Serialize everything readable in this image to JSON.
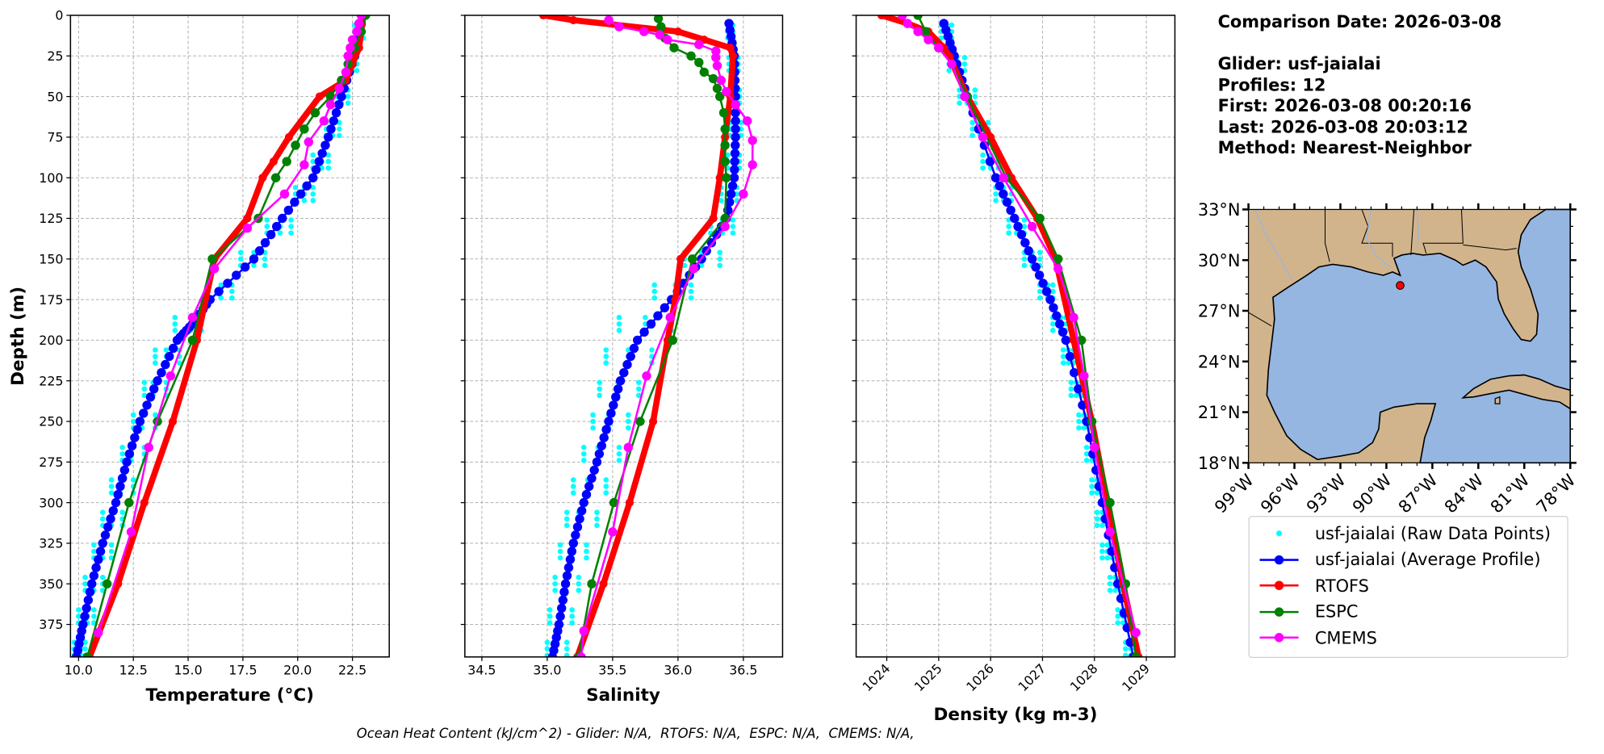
{
  "info": {
    "comparison_date": "Comparison Date: 2026-03-08",
    "glider": "Glider: usf-jaialai",
    "profiles": "Profiles: 12",
    "first": "First: 2026-03-08 00:20:16",
    "last": "Last: 2026-03-08 20:03:12",
    "method": "Method: Nearest-Neighbor"
  },
  "caption": "Ocean Heat Content (kJ/cm^2) - Glider: N/A,  RTOFS: N/A,  ESPC: N/A,  CMEMS: N/A,",
  "ylabel": "Depth (m)",
  "legend": [
    {
      "label": "usf-jaialai (Raw Data Points)",
      "color": "#00ffff",
      "style": "dot"
    },
    {
      "label": "usf-jaialai (Average Profile)",
      "color": "#0000ff",
      "style": "line-marker"
    },
    {
      "label": "RTOFS",
      "color": "#ff0000",
      "style": "line-marker"
    },
    {
      "label": "ESPC",
      "color": "#008000",
      "style": "line-marker"
    },
    {
      "label": "CMEMS",
      "color": "#ff00ff",
      "style": "line-marker"
    }
  ],
  "chart_data": [
    {
      "type": "line",
      "xlabel": "Temperature (°C)",
      "ylabel": "Depth (m)",
      "xlim": [
        9.63,
        24.18
      ],
      "ylim": [
        395,
        0
      ],
      "xticks": [
        "10.0",
        "12.5",
        "15.0",
        "17.5",
        "20.0",
        "22.5"
      ],
      "yticks": [
        0,
        25,
        50,
        75,
        100,
        125,
        150,
        175,
        200,
        225,
        250,
        275,
        300,
        325,
        350,
        375
      ],
      "grid": true,
      "raw": {
        "depth": [
          10,
          30,
          50,
          70,
          90,
          110,
          130,
          150,
          170,
          190,
          210,
          230,
          250,
          270,
          290,
          310,
          330,
          350,
          370,
          390
        ],
        "values": [
          [
            22.6,
            22.8,
            23.0
          ],
          [
            22.3,
            22.5,
            22.7
          ],
          [
            21.8,
            22.0,
            22.3
          ],
          [
            21.3,
            21.6,
            21.9
          ],
          [
            20.7,
            21.1,
            21.4
          ],
          [
            19.9,
            20.3,
            20.7
          ],
          [
            18.6,
            19.2,
            19.7
          ],
          [
            17.4,
            18.0,
            18.5
          ],
          [
            15.9,
            16.5,
            17.0
          ],
          [
            14.4,
            15.1,
            15.6
          ],
          [
            13.5,
            14.0,
            14.6
          ],
          [
            13.0,
            13.4,
            14.0
          ],
          [
            12.5,
            12.9,
            13.5
          ],
          [
            12.0,
            12.4,
            13.0
          ],
          [
            11.5,
            11.9,
            12.5
          ],
          [
            11.1,
            11.5,
            12.0
          ],
          [
            10.7,
            11.1,
            11.5
          ],
          [
            10.3,
            10.7,
            11.1
          ],
          [
            10.0,
            10.4,
            10.7
          ],
          [
            9.8,
            10.1,
            10.3
          ]
        ]
      },
      "series": [
        {
          "name": "usf-jaialai (Average Profile)",
          "depth": [
            5,
            25,
            50,
            75,
            100,
            125,
            150,
            175,
            190,
            200,
            225,
            250,
            275,
            300,
            325,
            350,
            375,
            395
          ],
          "values": [
            22.9,
            22.6,
            22.0,
            21.4,
            20.7,
            19.3,
            18.0,
            16.0,
            15.2,
            14.5,
            13.6,
            12.8,
            12.2,
            11.7,
            11.1,
            10.6,
            10.2,
            9.9
          ]
        },
        {
          "name": "RTOFS",
          "depth": [
            0,
            10,
            20,
            30,
            40,
            50,
            75,
            90,
            100,
            125,
            150,
            200,
            250,
            300,
            350,
            395
          ],
          "values": [
            23.0,
            22.9,
            22.8,
            22.5,
            22.2,
            21.0,
            19.6,
            18.9,
            18.4,
            17.7,
            16.2,
            15.4,
            14.3,
            13.0,
            11.8,
            10.5
          ]
        },
        {
          "name": "ESPC",
          "depth": [
            0,
            10,
            20,
            30,
            40,
            50,
            60,
            70,
            80,
            90,
            100,
            125,
            150,
            200,
            250,
            300,
            350,
            395
          ],
          "values": [
            23.1,
            22.9,
            22.6,
            22.3,
            22.0,
            21.5,
            20.8,
            20.3,
            19.9,
            19.5,
            19.0,
            18.2,
            16.1,
            15.2,
            13.6,
            12.3,
            11.3,
            10.4
          ]
        },
        {
          "name": "CMEMS",
          "depth": [
            0,
            5,
            10,
            15,
            20,
            25,
            35,
            45,
            55,
            65,
            78,
            92,
            110,
            131,
            156,
            186,
            222,
            266,
            318,
            380
          ],
          "values": [
            22.9,
            22.8,
            22.7,
            22.5,
            22.4,
            22.3,
            22.2,
            21.9,
            21.5,
            21.2,
            20.5,
            20.3,
            19.4,
            17.7,
            16.2,
            15.2,
            14.2,
            13.2,
            12.4,
            10.9
          ]
        }
      ]
    },
    {
      "type": "line",
      "xlabel": "Salinity",
      "xlim": [
        34.37,
        36.8
      ],
      "ylim": [
        395,
        0
      ],
      "xticks": [
        "34.5",
        "35.0",
        "35.5",
        "36.0",
        "36.5"
      ],
      "grid": true,
      "raw": {
        "depth": [
          10,
          30,
          50,
          70,
          90,
          110,
          130,
          150,
          170,
          190,
          210,
          230,
          250,
          270,
          290,
          310,
          330,
          350,
          370,
          390
        ],
        "values": [
          [
            36.38,
            36.4,
            36.42
          ],
          [
            36.39,
            36.43,
            36.46
          ],
          [
            36.4,
            36.44,
            36.47
          ],
          [
            36.4,
            36.44,
            36.48
          ],
          [
            36.38,
            36.43,
            36.47
          ],
          [
            36.33,
            36.4,
            36.45
          ],
          [
            36.25,
            36.34,
            36.42
          ],
          [
            36.05,
            36.18,
            36.32
          ],
          [
            35.82,
            35.98,
            36.1
          ],
          [
            35.55,
            35.75,
            35.95
          ],
          [
            35.45,
            35.62,
            35.8
          ],
          [
            35.4,
            35.54,
            35.7
          ],
          [
            35.35,
            35.47,
            35.62
          ],
          [
            35.28,
            35.39,
            35.55
          ],
          [
            35.2,
            35.31,
            35.45
          ],
          [
            35.15,
            35.24,
            35.38
          ],
          [
            35.1,
            35.19,
            35.3
          ],
          [
            35.06,
            35.14,
            35.24
          ],
          [
            35.02,
            35.1,
            35.19
          ],
          [
            35.0,
            35.05,
            35.15
          ]
        ]
      },
      "series": [
        {
          "name": "usf-jaialai (Average Profile)",
          "depth": [
            5,
            25,
            50,
            75,
            100,
            125,
            150,
            175,
            200,
            225,
            250,
            275,
            300,
            325,
            350,
            375,
            395
          ],
          "values": [
            36.39,
            36.43,
            36.44,
            36.44,
            36.43,
            36.37,
            36.18,
            35.95,
            35.69,
            35.56,
            35.47,
            35.38,
            35.28,
            35.2,
            35.14,
            35.09,
            35.04
          ]
        },
        {
          "name": "RTOFS",
          "depth": [
            0,
            3,
            10,
            15,
            20,
            25,
            50,
            75,
            100,
            125,
            150,
            175,
            200,
            250,
            300,
            350,
            395
          ],
          "values": [
            34.97,
            35.2,
            36.0,
            36.2,
            36.4,
            36.42,
            36.4,
            36.36,
            36.32,
            36.27,
            36.02,
            35.98,
            35.92,
            35.81,
            35.63,
            35.43,
            35.23
          ]
        },
        {
          "name": "ESPC",
          "depth": [
            2,
            7,
            14,
            20,
            25,
            29,
            35,
            39,
            45,
            50,
            60,
            70,
            80,
            90,
            100,
            125,
            150,
            200,
            250,
            300,
            350,
            395
          ],
          "values": [
            35.85,
            35.87,
            35.9,
            35.97,
            36.1,
            36.16,
            36.2,
            36.27,
            36.3,
            36.32,
            36.35,
            36.36,
            36.36,
            36.36,
            36.37,
            36.36,
            36.11,
            35.96,
            35.71,
            35.51,
            35.34,
            35.24
          ]
        },
        {
          "name": "CMEMS",
          "depth": [
            3,
            7,
            10,
            12,
            15,
            18,
            22,
            26,
            31,
            40,
            47,
            55,
            65,
            77,
            92,
            110,
            130,
            156,
            186,
            222,
            266,
            318,
            379,
            395
          ],
          "values": [
            35.47,
            35.55,
            35.74,
            35.86,
            35.92,
            36.16,
            36.29,
            36.29,
            36.3,
            36.33,
            36.37,
            36.44,
            36.53,
            36.57,
            36.57,
            36.5,
            36.36,
            36.12,
            35.94,
            35.76,
            35.62,
            35.5,
            35.28,
            35.26
          ]
        }
      ]
    },
    {
      "type": "line",
      "xlabel": "Density (kg m-3)",
      "xlim": [
        1023.41,
        1029.55
      ],
      "ylim": [
        395,
        0
      ],
      "xticks": [
        "1024",
        "1025",
        "1026",
        "1027",
        "1028",
        "1029"
      ],
      "grid": true,
      "raw": {
        "depth": [
          10,
          30,
          50,
          70,
          90,
          110,
          130,
          150,
          170,
          190,
          210,
          230,
          250,
          270,
          290,
          310,
          330,
          350,
          370,
          390
        ],
        "values": [
          [
            1025.05,
            1025.15,
            1025.25
          ],
          [
            1025.2,
            1025.35,
            1025.5
          ],
          [
            1025.4,
            1025.55,
            1025.7
          ],
          [
            1025.65,
            1025.8,
            1025.95
          ],
          [
            1025.85,
            1026.0,
            1026.15
          ],
          [
            1026.1,
            1026.25,
            1026.4
          ],
          [
            1026.35,
            1026.5,
            1026.65
          ],
          [
            1026.65,
            1026.8,
            1026.95
          ],
          [
            1026.95,
            1027.1,
            1027.2
          ],
          [
            1027.2,
            1027.35,
            1027.45
          ],
          [
            1027.4,
            1027.5,
            1027.6
          ],
          [
            1027.55,
            1027.65,
            1027.75
          ],
          [
            1027.7,
            1027.8,
            1027.9
          ],
          [
            1027.85,
            1027.95,
            1028.0
          ],
          [
            1027.95,
            1028.05,
            1028.15
          ],
          [
            1028.05,
            1028.15,
            1028.25
          ],
          [
            1028.15,
            1028.25,
            1028.35
          ],
          [
            1028.3,
            1028.4,
            1028.5
          ],
          [
            1028.45,
            1028.55,
            1028.65
          ],
          [
            1028.6,
            1028.7,
            1028.8
          ]
        ]
      },
      "series": [
        {
          "name": "usf-jaialai (Average Profile)",
          "depth": [
            5,
            25,
            50,
            100,
            125,
            150,
            175,
            200,
            250,
            300,
            350,
            395
          ],
          "values": [
            1025.1,
            1025.3,
            1025.55,
            1026.1,
            1026.46,
            1026.8,
            1027.15,
            1027.45,
            1027.85,
            1028.15,
            1028.45,
            1028.75
          ]
        },
        {
          "name": "RTOFS",
          "depth": [
            0,
            5,
            10,
            20,
            25,
            50,
            75,
            100,
            125,
            150,
            200,
            250,
            300,
            350,
            395
          ],
          "values": [
            1023.9,
            1024.4,
            1024.8,
            1025.1,
            1025.2,
            1025.55,
            1026.0,
            1026.4,
            1026.9,
            1027.25,
            1027.6,
            1027.95,
            1028.25,
            1028.55,
            1028.85
          ]
        },
        {
          "name": "ESPC",
          "depth": [
            0,
            10,
            20,
            30,
            50,
            100,
            125,
            150,
            200,
            250,
            300,
            350,
            395
          ],
          "values": [
            1024.6,
            1024.75,
            1025.0,
            1025.25,
            1025.55,
            1026.3,
            1026.95,
            1027.3,
            1027.75,
            1027.95,
            1028.3,
            1028.6,
            1028.8
          ]
        },
        {
          "name": "CMEMS",
          "depth": [
            0,
            5,
            10,
            15,
            20,
            30,
            50,
            75,
            100,
            130,
            156,
            186,
            222,
            266,
            318,
            380
          ],
          "values": [
            1024.3,
            1024.4,
            1024.6,
            1024.8,
            1025.0,
            1025.25,
            1025.5,
            1025.85,
            1026.25,
            1026.8,
            1027.3,
            1027.6,
            1027.8,
            1028.0,
            1028.3,
            1028.8
          ]
        }
      ]
    }
  ],
  "series_colors": {
    "raw": "#00ffff",
    "avg": "#0000ff",
    "RTOFS": "#ff0000",
    "ESPC": "#008000",
    "CMEMS": "#ff00ff"
  },
  "map": {
    "lon_range": [
      -99,
      -78
    ],
    "lat_range": [
      18,
      33
    ],
    "lat_ticks": [
      "18°N",
      "21°N",
      "24°N",
      "27°N",
      "30°N",
      "33°N"
    ],
    "lon_ticks": [
      "99°W",
      "96°W",
      "93°W",
      "90°W",
      "87°W",
      "84°W",
      "81°W",
      "78°W"
    ],
    "land_color": "#d2b48c",
    "water_color": "#96b6e2",
    "glider_location": {
      "lon": -89.1,
      "lat": 28.5,
      "color": "#ff0000"
    }
  }
}
